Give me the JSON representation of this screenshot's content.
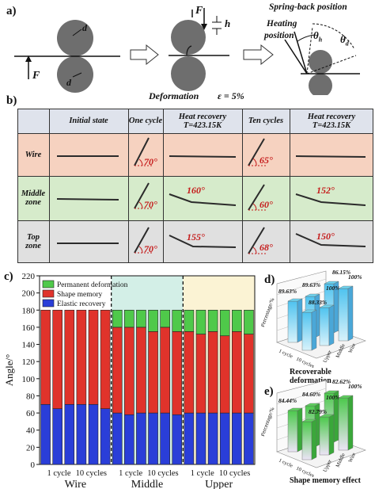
{
  "panel_a": {
    "label": "a)",
    "force": "F",
    "d": "d",
    "h": "h",
    "spring_back": "Spring-back position",
    "heating": "Heating",
    "position": "position",
    "theta_h": "θ",
    "theta_h_sub": "h",
    "theta_d": "θ",
    "theta_d_sub": "d",
    "deformation": "Deformation",
    "epsilon": "ε = 5%"
  },
  "panel_b": {
    "label": "b)",
    "columns": [
      "Initial state",
      "One cycle",
      "Heat recovery",
      "Ten cycles",
      "Heat recovery"
    ],
    "col_subtitles": [
      "",
      "",
      "T=423.15K",
      "",
      "T=423.15K"
    ],
    "rows": [
      {
        "name_1": "Wire",
        "name_2": "",
        "angles": [
          "",
          "70°",
          "",
          "65°",
          ""
        ]
      },
      {
        "name_1": "Middle",
        "name_2": "zone",
        "angles": [
          "",
          "70°",
          "160°",
          "60°",
          "152°"
        ]
      },
      {
        "name_1": "Top",
        "name_2": "zone",
        "angles": [
          "",
          "70°",
          "155°",
          "68°",
          "150°"
        ]
      }
    ]
  },
  "chart_data": [
    {
      "type": "bar",
      "panel": "c)",
      "stacked": true,
      "ylabel": "Angle/°",
      "ylim": [
        0,
        220
      ],
      "yticks": [
        0,
        20,
        40,
        60,
        80,
        100,
        120,
        140,
        160,
        180,
        200,
        220
      ],
      "groups": [
        "Wire",
        "Middle",
        "Upper"
      ],
      "xtick_labels": [
        "1 cycle",
        "10 cycles",
        "1 cycle",
        "10 cycles",
        "1 cycle",
        "10 cycles"
      ],
      "legend": [
        "Permanent deformation",
        "Shape memory",
        "Elastic recovery"
      ],
      "series": [
        {
          "name": "Elastic recovery",
          "color": "#2a3ed8",
          "values": [
            70,
            65,
            70,
            70,
            70,
            65,
            60,
            58,
            60,
            60,
            60,
            58,
            60,
            60,
            60,
            60,
            60,
            60
          ]
        },
        {
          "name": "Shape memory",
          "color": "#e0332b",
          "values": [
            110,
            115,
            110,
            110,
            110,
            115,
            100,
            102,
            100,
            95,
            100,
            97,
            95,
            92,
            95,
            90,
            95,
            92
          ]
        },
        {
          "name": "Permanent deformation",
          "color": "#4fc94a",
          "values": [
            0,
            0,
            0,
            0,
            0,
            0,
            20,
            20,
            20,
            25,
            20,
            25,
            25,
            28,
            25,
            30,
            25,
            28
          ]
        }
      ],
      "group_backgrounds": [
        "#ffffff",
        "#d3efe7",
        "#fbf3d4"
      ]
    },
    {
      "type": "bar",
      "panel": "d)",
      "title": "Recoverable deformation",
      "ylabel": "Percentage/%",
      "categories_x": [
        "1 cycle",
        "10 cycles"
      ],
      "categories_depth": [
        "Upper",
        "Middle",
        "Wire"
      ],
      "data_labels": [
        "89.63%",
        "89.63%",
        "86.15%",
        "88.33%",
        "100%",
        "100%"
      ]
    },
    {
      "type": "bar",
      "panel": "e)",
      "title": "Shape memory effect",
      "ylabel": "Percentage/%",
      "categories_x": [
        "1 cycle",
        "10 cycles"
      ],
      "categories_depth": [
        "Upper",
        "Middle",
        "Wire"
      ],
      "data_labels": [
        "84.44%",
        "84.60%",
        "82.62%",
        "82.79%",
        "100%",
        "100%"
      ]
    }
  ]
}
